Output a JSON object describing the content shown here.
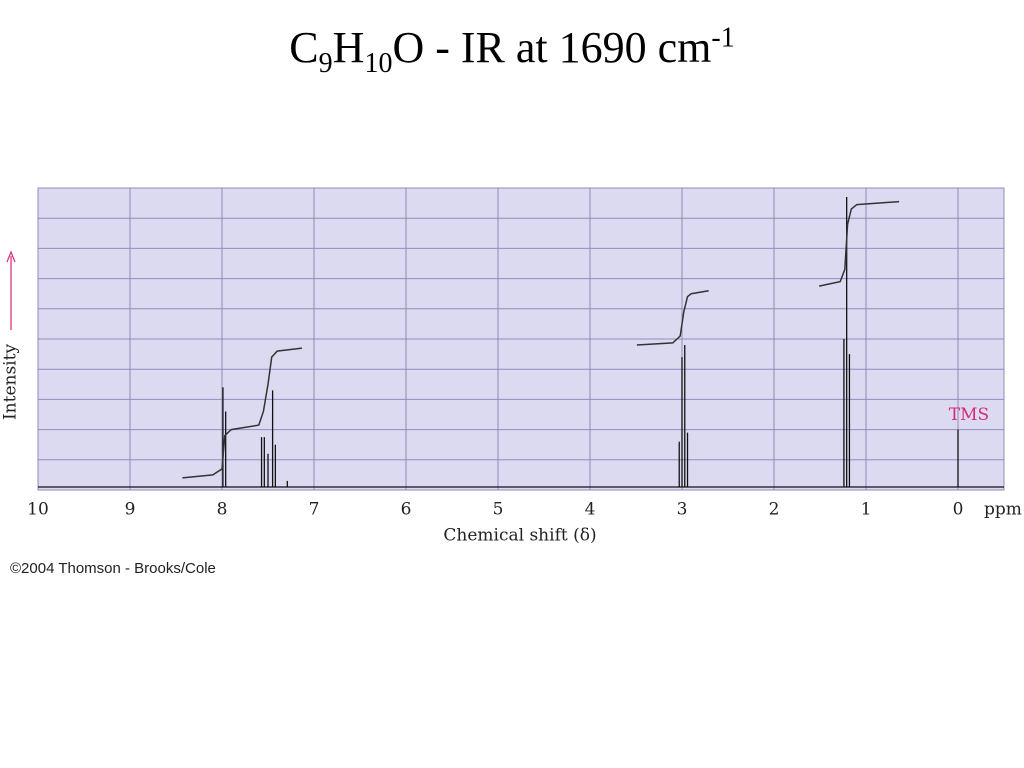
{
  "chart_data": {
    "type": "spectrum",
    "title": [
      {
        "text": "C"
      },
      {
        "text": "9",
        "style": "sub"
      },
      {
        "text": "H"
      },
      {
        "text": "10",
        "style": "sub"
      },
      {
        "text": "O - IR at 1690 cm"
      },
      {
        "text": "-1",
        "style": "sup"
      }
    ],
    "x_label": "Chemical shift (δ)",
    "x_unit": "ppm",
    "y_label": "Intensity",
    "xlim": [
      10,
      -0.5
    ],
    "xticks": [
      10,
      9,
      8,
      7,
      6,
      5,
      4,
      3,
      2,
      1,
      0
    ],
    "ylim": [
      0,
      10
    ],
    "ygrid": [
      1,
      2,
      3,
      4,
      5,
      6,
      7,
      8,
      9
    ],
    "grid": true,
    "background": "#dcdaf0",
    "grid_color": "#8f8cbc",
    "baseline": 0.1,
    "peaks": {
      "color": "#111111",
      "x": [
        7.99,
        7.96,
        7.57,
        7.54,
        7.5,
        7.45,
        7.42,
        7.29,
        3.03,
        3.0,
        2.97,
        2.94,
        1.24,
        1.21,
        1.18,
        0
      ],
      "values": [
        3.4,
        2.6,
        1.75,
        1.75,
        1.2,
        3.3,
        1.5,
        0.3,
        1.6,
        4.4,
        4.8,
        1.9,
        5.0,
        9.7,
        4.5,
        2.0
      ]
    },
    "integrals": [
      {
        "color": "#333333",
        "x": [
          8.43,
          8.1,
          8.0,
          7.97,
          7.9,
          7.6,
          7.55,
          7.5,
          7.46,
          7.4,
          7.13
        ],
        "values": [
          0.4,
          0.5,
          0.7,
          1.8,
          2.0,
          2.15,
          2.6,
          3.5,
          4.4,
          4.6,
          4.7
        ]
      },
      {
        "color": "#333333",
        "x": [
          3.49,
          3.1,
          3.02,
          2.98,
          2.94,
          2.9,
          2.71
        ],
        "values": [
          4.8,
          4.87,
          5.1,
          5.9,
          6.4,
          6.5,
          6.6
        ]
      },
      {
        "color": "#333333",
        "x": [
          1.51,
          1.28,
          1.23,
          1.2,
          1.16,
          1.1,
          0.64
        ],
        "values": [
          6.75,
          6.9,
          7.3,
          8.8,
          9.3,
          9.45,
          9.55
        ]
      }
    ],
    "annotation": {
      "text": "TMS",
      "color": "#d6297a"
    }
  },
  "footer": "©2004 Thomson - Brooks/Cole"
}
